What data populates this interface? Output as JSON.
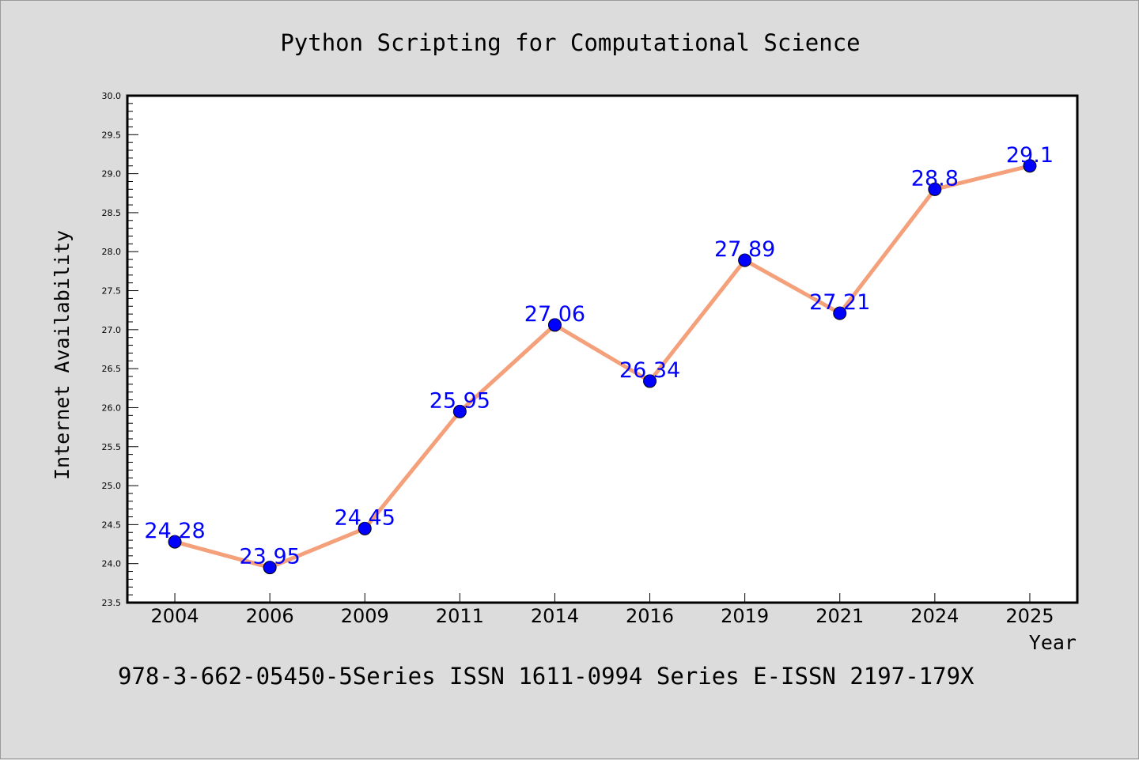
{
  "chart_data": {
    "type": "line",
    "title": "Python Scripting for Computational Science",
    "xlabel": "Year",
    "ylabel": "Internet Availability",
    "categories": [
      "2004",
      "2006",
      "2009",
      "2011",
      "2014",
      "2016",
      "2019",
      "2021",
      "2024",
      "2025"
    ],
    "series": [
      {
        "values": [
          24.28,
          23.95,
          24.45,
          25.95,
          27.06,
          26.34,
          27.89,
          27.21,
          28.8,
          29.1
        ],
        "data_labels": [
          "24.28",
          "23.95",
          "24.45",
          "25.95",
          "27.06",
          "26.34",
          "27.89",
          "27.21",
          "28.8",
          "29.1"
        ]
      }
    ],
    "ylim": [
      23.5,
      30.0
    ],
    "yticks": [
      "23.5",
      "24.0",
      "24.5",
      "25.0",
      "25.5",
      "26.0",
      "26.5",
      "27.0",
      "27.5",
      "28.0",
      "28.5",
      "29.0",
      "29.5",
      "30.0"
    ],
    "grid": false,
    "line_color": "#f4a07a",
    "marker_color": "#0000ff",
    "label_color": "#0000ff"
  },
  "footer_text": "978-3-662-05450-5Series ISSN 1611-0994 Series E-ISSN 2197-179X"
}
